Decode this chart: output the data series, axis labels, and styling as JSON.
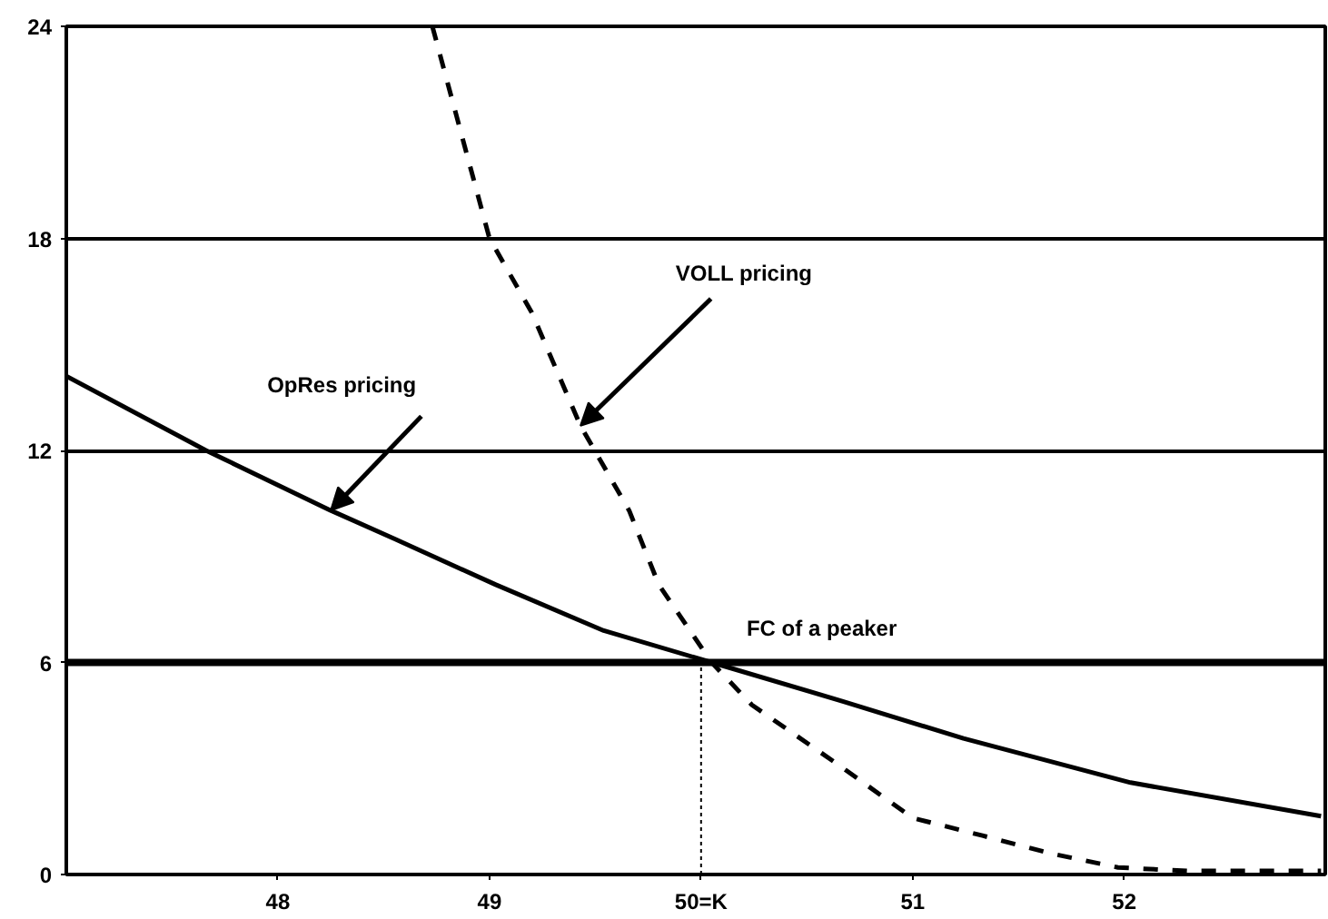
{
  "chart_data": {
    "type": "line",
    "xlim": [
      47,
      52.95
    ],
    "ylim": [
      0,
      24
    ],
    "xticks": [
      48,
      49,
      {
        "value": 50,
        "label": "50=K"
      },
      51,
      52
    ],
    "yticks": [
      0,
      6,
      12,
      18,
      24
    ],
    "grid": "y",
    "series": [
      {
        "color": "#000000",
        "line_style": "solid",
        "x": [
          47.0,
          47.66,
          48.25,
          48.55,
          49.03,
          49.54,
          50.05,
          50.67,
          51.24,
          52.03,
          52.93
        ],
        "values": [
          14.1,
          12.0,
          10.3,
          9.5,
          8.2,
          6.9,
          6.0,
          4.9,
          3.85,
          2.6,
          1.65
        ]
      },
      {
        "color": "#000000",
        "line_style": "dashed",
        "x": [
          48.73,
          49.0,
          49.2,
          49.43,
          49.66,
          49.8,
          50.05,
          50.24,
          50.65,
          51.0,
          51.33,
          51.65,
          51.97,
          52.3,
          52.93
        ],
        "values": [
          24,
          18,
          15.9,
          12.7,
          10.3,
          8.2,
          6.0,
          4.8,
          3.1,
          1.6,
          1.1,
          0.6,
          0.2,
          0.1,
          0.1
        ]
      },
      {
        "color": "#000000",
        "line_style": "dotted",
        "x": [
          50,
          50
        ],
        "values": [
          0,
          6
        ]
      }
    ],
    "ref_lines": [
      {
        "axis": "y",
        "value": 6,
        "label": "FC of a peaker",
        "color": "#000000"
      }
    ],
    "annotations": [
      {
        "text": "OpRes pricing",
        "x": 48.25,
        "y": 10.3
      },
      {
        "text": "VOLL pricing",
        "x": 49.43,
        "y": 12.7
      }
    ]
  }
}
